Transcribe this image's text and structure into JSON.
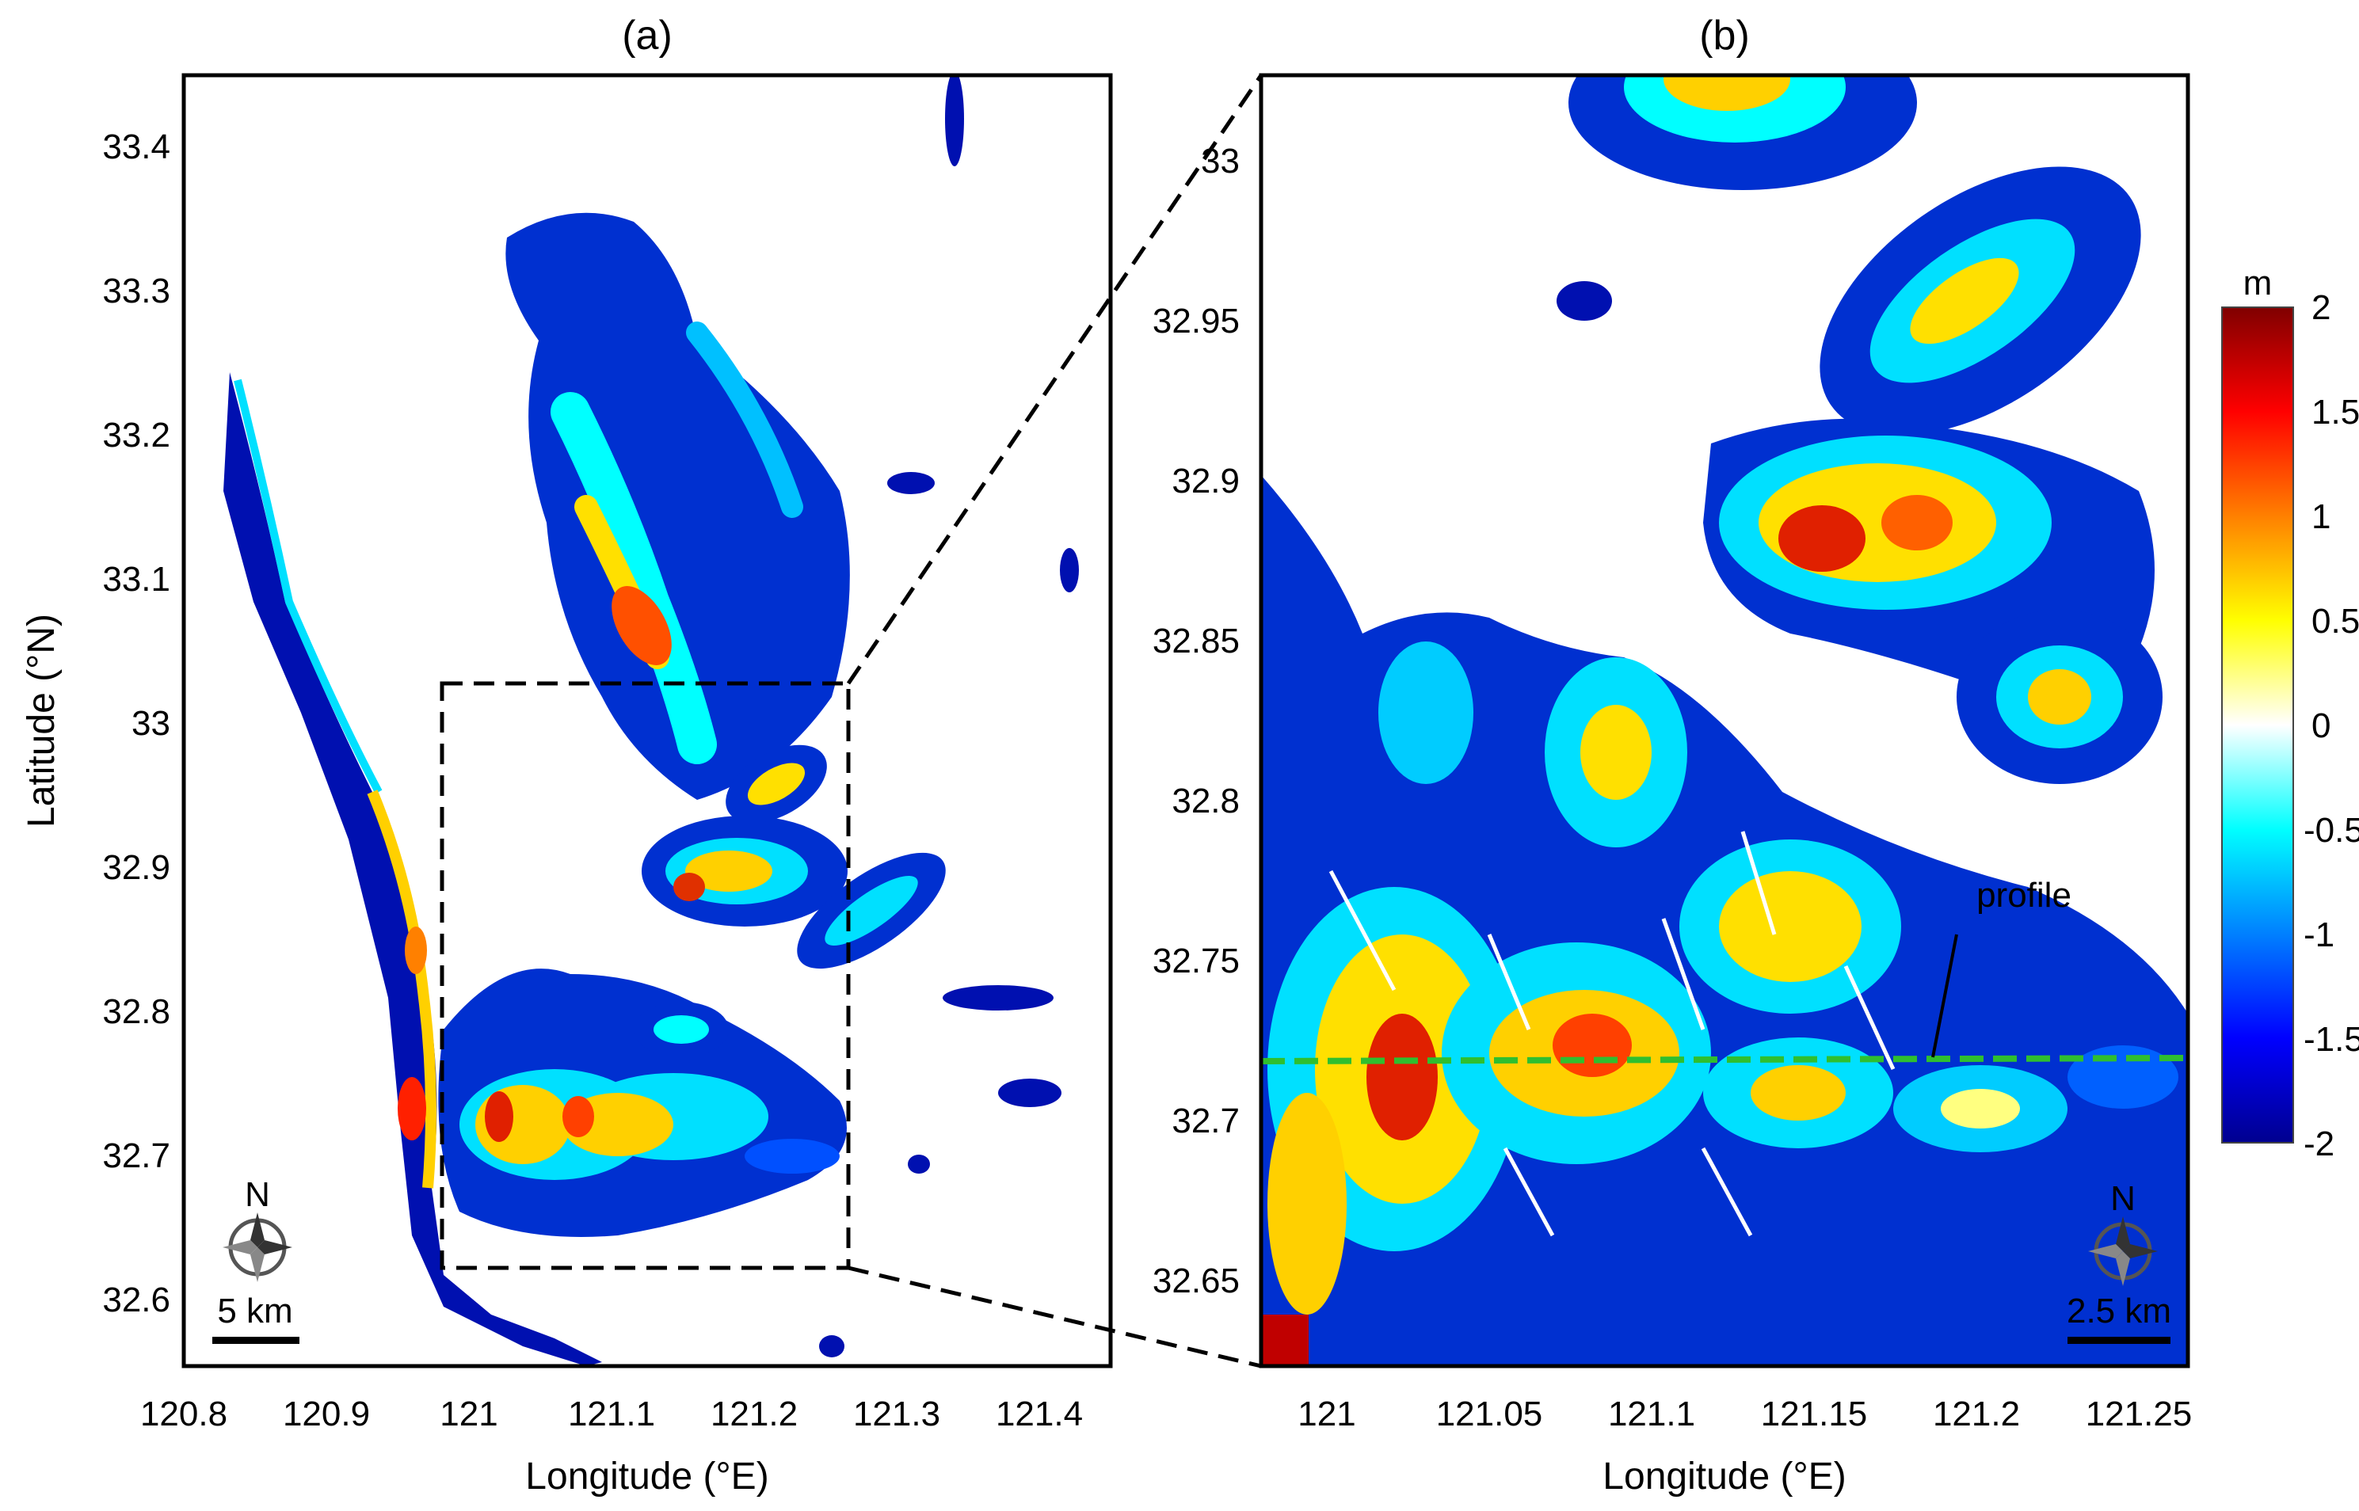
{
  "panels": [
    {
      "id": "a",
      "title": "(a)",
      "xlabel": "Longitude (°E)",
      "ylabel": "Latitude (°N)",
      "xlim": [
        120.8,
        121.45
      ],
      "ylim": [
        32.55,
        33.45
      ],
      "xticks": [
        "120.8",
        "120.9",
        "121",
        "121.1",
        "121.2",
        "121.3",
        "121.4"
      ],
      "yticks": [
        "32.6",
        "32.7",
        "32.8",
        "32.9",
        "33",
        "33.1",
        "33.2",
        "33.3",
        "33.4"
      ],
      "scalebar": "5 km",
      "north": "N",
      "inset_box": {
        "lon": [
          120.98,
          121.265
        ],
        "lat": [
          32.62,
          33.03
        ]
      }
    },
    {
      "id": "b",
      "title": "(b)",
      "xlabel": "Longitude (°E)",
      "ylabel": "",
      "xlim": [
        120.98,
        121.265
      ],
      "ylim": [
        32.63,
        33.03
      ],
      "xticks": [
        "121",
        "121.05",
        "121.1",
        "121.15",
        "121.2",
        "121.25"
      ],
      "yticks": [
        "32.65",
        "32.7",
        "32.75",
        "32.8",
        "32.85",
        "32.9",
        "32.95",
        "33"
      ],
      "scalebar": "2.5 km",
      "north": "N",
      "profile": {
        "label": "profile",
        "lat": 32.72,
        "color": "#2fbf2f"
      }
    }
  ],
  "colorbar": {
    "unit": "m",
    "ticks": [
      "2",
      "1.5",
      "1",
      "0.5",
      "0",
      "-0.5",
      "-1",
      "-1.5",
      "-2"
    ],
    "range": [
      -2,
      2
    ],
    "colors": [
      "#00008f",
      "#0000ff",
      "#0080ff",
      "#00ffff",
      "#ffffff",
      "#ffff00",
      "#ff8000",
      "#ff0000",
      "#800000"
    ]
  }
}
